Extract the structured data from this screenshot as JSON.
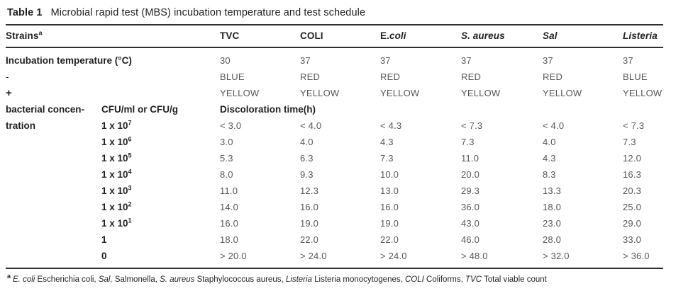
{
  "title": {
    "label": "Table 1",
    "text": "Microbial rapid test (MBS) incubation temperature and test schedule"
  },
  "table": {
    "strains_header": {
      "text": "Strains",
      "sup": "a"
    },
    "columns": [
      {
        "name": "TVC",
        "segments": [
          {
            "t": "TVC",
            "i": false
          }
        ]
      },
      {
        "name": "COLI",
        "segments": [
          {
            "t": "COLI",
            "i": false
          }
        ]
      },
      {
        "name": "E.coli",
        "segments": [
          {
            "t": "E.",
            "i": false
          },
          {
            "t": "coli",
            "i": true
          }
        ]
      },
      {
        "name": "S. aureus",
        "segments": [
          {
            "t": "S. aureus",
            "i": true
          }
        ]
      },
      {
        "name": "Sal",
        "segments": [
          {
            "t": "Sal",
            "i": true
          }
        ]
      },
      {
        "name": "Listeria",
        "segments": [
          {
            "t": "Listeria",
            "i": true
          }
        ]
      }
    ],
    "top_rows": [
      {
        "label": "Incubation temperature (°C)",
        "bold": true,
        "values": [
          "30",
          "37",
          "37",
          "37",
          "37",
          "37"
        ]
      },
      {
        "label": "-",
        "bold": false,
        "values": [
          "BLUE",
          "RED",
          "RED",
          "RED",
          "RED",
          "BLUE"
        ]
      },
      {
        "label": "+",
        "bold": true,
        "values": [
          "YELLOW",
          "YELLOW",
          "YELLOW",
          "YELLOW",
          "YELLOW",
          "YELLOW"
        ]
      }
    ],
    "concentration_label_line1": "bacterial concen-",
    "concentration_label_line2": "tration",
    "cfu_header": "CFU/ml or CFU/g",
    "discoloration_header": "Discoloration time(h)",
    "conc_rows": [
      {
        "base": "1 x 10",
        "exp": "7",
        "values": [
          "< 3.0",
          "< 4.0",
          "< 4.3",
          "< 7.3",
          "< 4.0",
          "< 7.3"
        ]
      },
      {
        "base": "1 x 10",
        "exp": "6",
        "values": [
          "3.0",
          "4.0",
          "4.3",
          "7.3",
          "4.0",
          "7.3"
        ]
      },
      {
        "base": "1 x 10",
        "exp": "5",
        "values": [
          "5.3",
          "6.3",
          "7.3",
          "11.0",
          "4.3",
          "12.0"
        ]
      },
      {
        "base": "1 x 10",
        "exp": "4",
        "values": [
          "8.0",
          "9.3",
          "10.0",
          "20.0",
          "8.3",
          "16.3"
        ]
      },
      {
        "base": "1 x 10",
        "exp": "3",
        "values": [
          "11.0",
          "12.3",
          "13.0",
          "29.3",
          "13.3",
          "20.3"
        ]
      },
      {
        "base": "1 x 10",
        "exp": "2",
        "values": [
          "14.0",
          "16.0",
          "16.0",
          "36.0",
          "18.0",
          "25.0"
        ]
      },
      {
        "base": "1 x 10",
        "exp": "1",
        "values": [
          "16.0",
          "19.0",
          "19.0",
          "43.0",
          "23.0",
          "29.0"
        ]
      },
      {
        "base": "1",
        "exp": "",
        "values": [
          "18.0",
          "22.0",
          "22.0",
          "46.0",
          "28.0",
          "33.0"
        ]
      },
      {
        "base": "0",
        "exp": "",
        "values": [
          "> 20.0",
          "> 24.0",
          "> 24.0",
          "> 48.0",
          "> 32.0",
          "> 36.0"
        ]
      }
    ],
    "footnote": {
      "sup": "a",
      "segments": [
        {
          "t": "E. coli",
          "i": true
        },
        {
          "t": " Escherichia coli, ",
          "i": false
        },
        {
          "t": "Sal,",
          "i": true
        },
        {
          "t": " Salmonella, ",
          "i": false
        },
        {
          "t": "S. aureus",
          "i": true
        },
        {
          "t": " Staphylococcus aureus, ",
          "i": false
        },
        {
          "t": "Listeria",
          "i": true
        },
        {
          "t": " Listeria monocytogenes, ",
          "i": false
        },
        {
          "t": "COLI",
          "i": true
        },
        {
          "t": " Coliforms, ",
          "i": false
        },
        {
          "t": "TVC",
          "i": true
        },
        {
          "t": " Total viable count",
          "i": false
        }
      ]
    }
  },
  "colors": {
    "text": "#231f20",
    "muted": "#55575a",
    "rule": "#2f2f30",
    "background": "#ffffff"
  }
}
